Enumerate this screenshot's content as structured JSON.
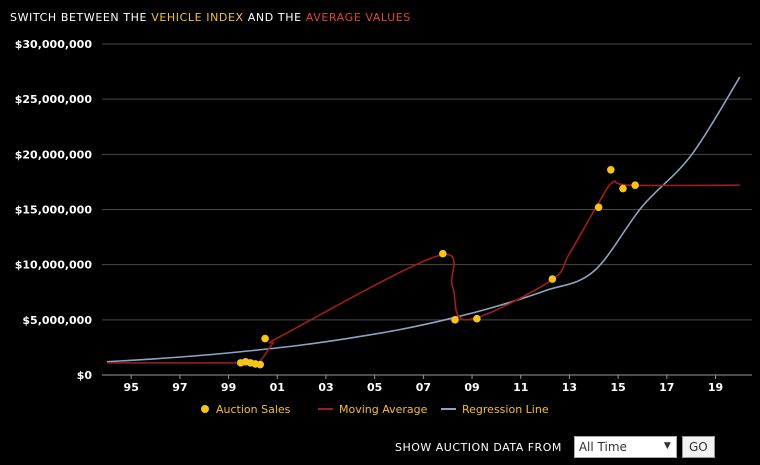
{
  "header": {
    "prefix": "SWITCH BETWEEN THE",
    "vehicle_index": "VEHICLE INDEX",
    "middle": "AND THE",
    "average_values": "AVERAGE VALUES"
  },
  "controls": {
    "show_label": "SHOW AUCTION DATA FROM",
    "selected_range": "All Time",
    "go_label": "GO"
  },
  "colors": {
    "background": "#000000",
    "grid": "#4a4a4a",
    "auction": "#f5c518",
    "moving_avg": "#a11d1d",
    "regression": "#8aa6c4",
    "vehicle_index": "#f1c232",
    "average_values": "#e0453a"
  },
  "chart_data": {
    "type": "scatter",
    "title": "",
    "xlabel": "",
    "ylabel": "",
    "xlim": [
      1993.8,
      2020.5
    ],
    "ylim": [
      0,
      30000000
    ],
    "y_ticks": [
      0,
      5000000,
      10000000,
      15000000,
      20000000,
      25000000,
      30000000
    ],
    "y_tick_labels": [
      "$0",
      "$5,000,000",
      "$10,000,000",
      "$15,000,000",
      "$20,000,000",
      "$25,000,000",
      "$30,000,000"
    ],
    "x_ticks": [
      1995,
      1997,
      1999,
      2001,
      2003,
      2005,
      2007,
      2009,
      2011,
      2013,
      2015,
      2017,
      2019
    ],
    "x_tick_labels": [
      "95",
      "97",
      "99",
      "01",
      "03",
      "05",
      "07",
      "09",
      "11",
      "13",
      "15",
      "17",
      "19"
    ],
    "grid": true,
    "legend_position": "bottom-center",
    "legend": [
      "Auction Sales",
      "Moving Average",
      "Regression Line"
    ],
    "series": [
      {
        "name": "Auction Sales",
        "kind": "scatter",
        "x": [
          1999.5,
          1999.7,
          1999.9,
          2000.1,
          2000.3,
          2000.5,
          2007.8,
          2008.3,
          2009.2,
          2012.3,
          2014.2,
          2014.7,
          2015.2,
          2015.7
        ],
        "y": [
          1100000,
          1200000,
          1100000,
          1000000,
          950000,
          3300000,
          11000000,
          5000000,
          5100000,
          8700000,
          15200000,
          18600000,
          16900000,
          17200000
        ]
      },
      {
        "name": "Moving Average",
        "kind": "line",
        "x": [
          1994,
          1999.5,
          2000.2,
          2000.8,
          2001.3,
          2007.6,
          2008.2,
          2008.8,
          2012.2,
          2013.0,
          2014.2,
          2014.8,
          2015.5,
          2020.0
        ],
        "y": [
          1100000,
          1100000,
          1100000,
          2800000,
          3700000,
          10800000,
          8000000,
          5000000,
          8500000,
          11000000,
          15600000,
          17500000,
          17200000,
          17200000
        ]
      },
      {
        "name": "Regression Line",
        "kind": "line",
        "x": [
          1994,
          1996,
          1998,
          2000,
          2002,
          2004,
          2006,
          2008,
          2010,
          2012,
          2014,
          2016,
          2018,
          2020
        ],
        "y": [
          1200000,
          1470000,
          1800000,
          2220000,
          2720000,
          3350000,
          4100000,
          5060000,
          6220000,
          7640000,
          9400000,
          15300000,
          19900000,
          27000000
        ]
      }
    ]
  }
}
